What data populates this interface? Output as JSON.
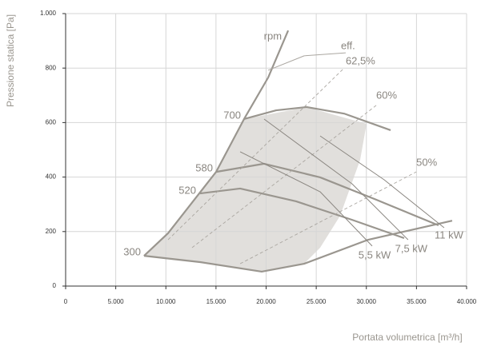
{
  "chart_data": {
    "type": "line",
    "x_label": "Portata volumetrica [m³/h]",
    "y_label": "Pressione statica [Pa]",
    "xlim": [
      0,
      40000
    ],
    "ylim": [
      0,
      1000
    ],
    "xticks": [
      0,
      {
        "value": 5000,
        "label": "5.000"
      },
      {
        "value": 10000,
        "label": "10.000"
      },
      {
        "value": 15000,
        "label": "15.000"
      },
      {
        "value": 20000,
        "label": "20.000"
      },
      {
        "value": 25000,
        "label": "25.000"
      },
      {
        "value": 30000,
        "label": "30.000"
      },
      {
        "value": 35000,
        "label": "35.000"
      },
      {
        "value": 40000,
        "label": "40.000"
      }
    ],
    "yticks": [
      0,
      200,
      400,
      600,
      800,
      {
        "value": 1000,
        "label": "1.000"
      }
    ],
    "grid": true,
    "series": [
      {
        "name": "rpm",
        "color": "#9a968f",
        "style": "thick",
        "x": [
          7820,
          10220,
          15010,
          17800,
          20200,
          22200
        ],
        "values": [
          111,
          194,
          419,
          613,
          765,
          938
        ]
      },
      {
        "name": "700",
        "color": "#9a968f",
        "style": "thick",
        "x": [
          17800,
          21000,
          24030,
          27780,
          32420
        ],
        "values": [
          613,
          645,
          657,
          633,
          572
        ]
      },
      {
        "name": "580",
        "color": "#9a968f",
        "style": "thick",
        "x": [
          15010,
          19800,
          25390,
          30980,
          37200
        ],
        "values": [
          419,
          449,
          399,
          317,
          223
        ]
      },
      {
        "name": "520",
        "color": "#9a968f",
        "style": "thick",
        "x": [
          13410,
          17410,
          22990,
          28580,
          33770
        ],
        "values": [
          340,
          358,
          311,
          243,
          176
        ]
      },
      {
        "name": "300",
        "color": "#9a968f",
        "style": "thick",
        "x": [
          7820,
          13410,
          19560,
          23790,
          30180,
          38560
        ],
        "values": [
          111,
          88,
          53,
          82,
          170,
          240
        ]
      },
      {
        "name": "eff.",
        "color": "#aaa6a0",
        "style": "thin",
        "x": [
          20200,
          23790,
          27940
        ],
        "values": [
          792,
          845,
          856
        ]
      },
      {
        "name": "62,5%",
        "color": "#aaa6a0",
        "style": "dashed",
        "x": [
          10220,
          27780
        ],
        "values": [
          170,
          800
        ]
      },
      {
        "name": "60%",
        "color": "#aaa6a0",
        "style": "dashed",
        "x": [
          12610,
          30980
        ],
        "values": [
          141,
          663
        ]
      },
      {
        "name": "50%",
        "color": "#aaa6a0",
        "style": "dashed",
        "x": [
          17410,
          34980
        ],
        "values": [
          82,
          419
        ]
      },
      {
        "name": "5,5 kW",
        "color": "#8a8680",
        "style": "thin",
        "x": [
          17410,
          25390,
          30580
        ],
        "values": [
          493,
          346,
          147
        ]
      },
      {
        "name": "7,5 kW",
        "color": "#8a8680",
        "style": "thin",
        "x": [
          19800,
          28580,
          34160
        ],
        "values": [
          613,
          375,
          170
        ]
      },
      {
        "name": "11 kW",
        "color": "#8a8680",
        "style": "thin",
        "x": [
          25390,
          31780,
          37760
        ],
        "values": [
          551,
          390,
          214
        ]
      }
    ]
  }
}
